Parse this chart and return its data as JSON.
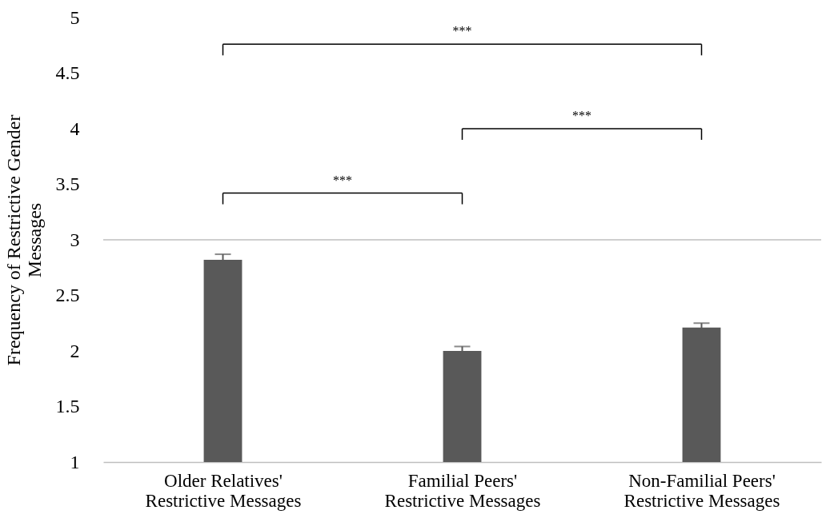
{
  "chart_data": {
    "type": "bar",
    "ylabel": "Frequency of Restrictive Gender Messages",
    "categories": [
      "Older Relatives' Restrictive Messages",
      "Familial Peers' Restrictive Messages",
      "Non-Familial Peers' Restrictive Messages"
    ],
    "series": [
      {
        "color": "#595959",
        "values": [
          2.82,
          2.0,
          2.21
        ],
        "errors": [
          0.05,
          0.04,
          0.04
        ]
      }
    ],
    "ylim": [
      1,
      5
    ],
    "yticks": [
      1,
      1.5,
      2,
      2.5,
      3,
      3.5,
      4,
      4.5,
      5
    ],
    "ref_lines": [
      {
        "axis": "y",
        "value": 3,
        "color": "#bfbfbf"
      }
    ],
    "grid": false,
    "annotations": [
      "***",
      "***",
      "***"
    ]
  }
}
